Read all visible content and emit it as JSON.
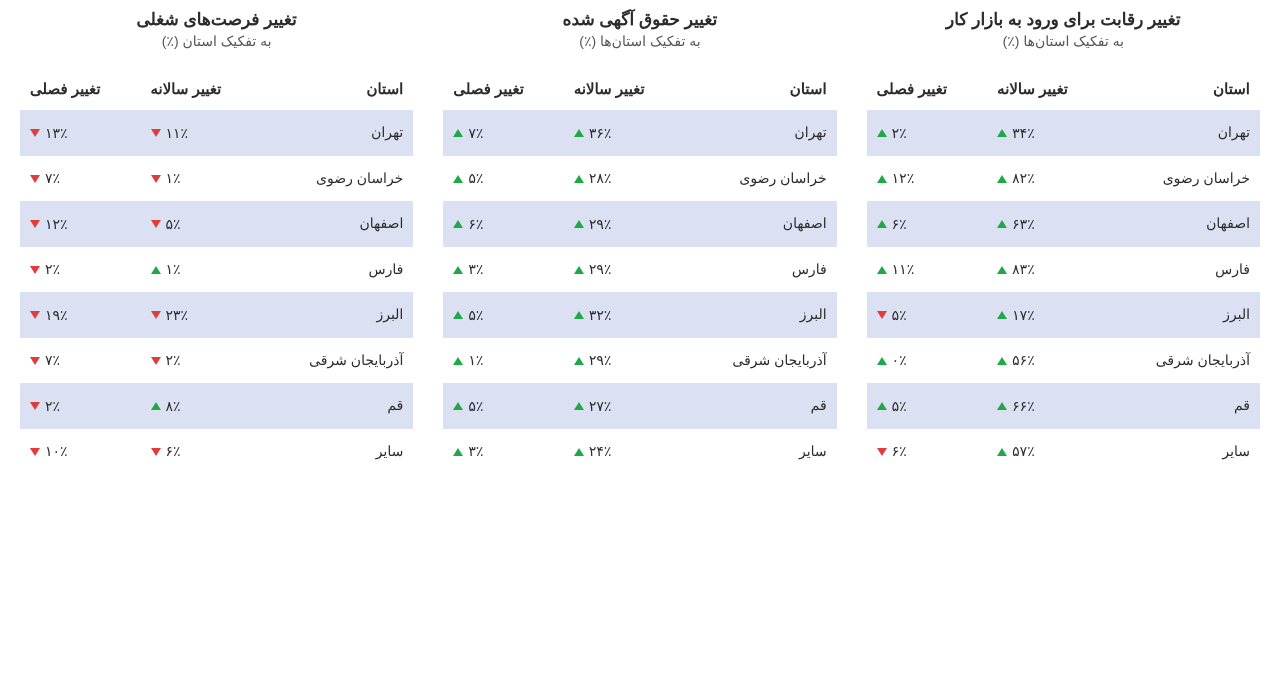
{
  "colors": {
    "up": "#1fa945",
    "down": "#e23b3b",
    "row_alt": "#dbe0f2",
    "bg": "#ffffff",
    "text": "#2b2b2b",
    "subtitle": "#555555"
  },
  "columns": {
    "province": "استان",
    "yearly": "تغییر سالانه",
    "seasonal": "تغییر فصلی"
  },
  "percent_suffix": "٪",
  "tables": [
    {
      "title": "تغییر فرصت‌های شغلی",
      "subtitle": "به تفکیک استان (٪)",
      "rows": [
        {
          "province": "تهران",
          "yearly": {
            "v": "۱۱",
            "dir": "down"
          },
          "seasonal": {
            "v": "۱۳",
            "dir": "down"
          }
        },
        {
          "province": "خراسان رضوی",
          "yearly": {
            "v": "۱",
            "dir": "down"
          },
          "seasonal": {
            "v": "۷",
            "dir": "down"
          }
        },
        {
          "province": "اصفهان",
          "yearly": {
            "v": "۵",
            "dir": "down"
          },
          "seasonal": {
            "v": "۱۲",
            "dir": "down"
          }
        },
        {
          "province": "فارس",
          "yearly": {
            "v": "۱",
            "dir": "up"
          },
          "seasonal": {
            "v": "۲",
            "dir": "down"
          }
        },
        {
          "province": "البرز",
          "yearly": {
            "v": "۲۳",
            "dir": "down"
          },
          "seasonal": {
            "v": "۱۹",
            "dir": "down"
          }
        },
        {
          "province": "آذربایجان شرقی",
          "yearly": {
            "v": "۲",
            "dir": "down"
          },
          "seasonal": {
            "v": "۷",
            "dir": "down"
          }
        },
        {
          "province": "قم",
          "yearly": {
            "v": "۸",
            "dir": "up"
          },
          "seasonal": {
            "v": "۲",
            "dir": "down"
          }
        },
        {
          "province": "سایر",
          "yearly": {
            "v": "۶",
            "dir": "down"
          },
          "seasonal": {
            "v": "۱۰",
            "dir": "down"
          }
        }
      ]
    },
    {
      "title": "تغییر حقوق آگهی شده",
      "subtitle": "به تفکیک استان‌ها (٪)",
      "rows": [
        {
          "province": "تهران",
          "yearly": {
            "v": "۳۶",
            "dir": "up"
          },
          "seasonal": {
            "v": "۷",
            "dir": "up"
          }
        },
        {
          "province": "خراسان رضوی",
          "yearly": {
            "v": "۲۸",
            "dir": "up"
          },
          "seasonal": {
            "v": "۵",
            "dir": "up"
          }
        },
        {
          "province": "اصفهان",
          "yearly": {
            "v": "۲۹",
            "dir": "up"
          },
          "seasonal": {
            "v": "۶",
            "dir": "up"
          }
        },
        {
          "province": "فارس",
          "yearly": {
            "v": "۲۹",
            "dir": "up"
          },
          "seasonal": {
            "v": "۳",
            "dir": "up"
          }
        },
        {
          "province": "البرز",
          "yearly": {
            "v": "۳۲",
            "dir": "up"
          },
          "seasonal": {
            "v": "۵",
            "dir": "up"
          }
        },
        {
          "province": "آذربایجان شرقی",
          "yearly": {
            "v": "۲۹",
            "dir": "up"
          },
          "seasonal": {
            "v": "۱",
            "dir": "up"
          }
        },
        {
          "province": "قم",
          "yearly": {
            "v": "۲۷",
            "dir": "up"
          },
          "seasonal": {
            "v": "۵",
            "dir": "up"
          }
        },
        {
          "province": "سایر",
          "yearly": {
            "v": "۲۴",
            "dir": "up"
          },
          "seasonal": {
            "v": "۳",
            "dir": "up"
          }
        }
      ]
    },
    {
      "title": "تغییر رقابت برای ورود به بازار کار",
      "subtitle": "به تفکیک استان‌ها (٪)",
      "rows": [
        {
          "province": "تهران",
          "yearly": {
            "v": "۳۴",
            "dir": "up"
          },
          "seasonal": {
            "v": "۲",
            "dir": "up"
          }
        },
        {
          "province": "خراسان رضوی",
          "yearly": {
            "v": "۸۲",
            "dir": "up"
          },
          "seasonal": {
            "v": "۱۲",
            "dir": "up"
          }
        },
        {
          "province": "اصفهان",
          "yearly": {
            "v": "۶۳",
            "dir": "up"
          },
          "seasonal": {
            "v": "۶",
            "dir": "up"
          }
        },
        {
          "province": "فارس",
          "yearly": {
            "v": "۸۳",
            "dir": "up"
          },
          "seasonal": {
            "v": "۱۱",
            "dir": "up"
          }
        },
        {
          "province": "البرز",
          "yearly": {
            "v": "۱۷",
            "dir": "up"
          },
          "seasonal": {
            "v": "۵",
            "dir": "down"
          }
        },
        {
          "province": "آذربایجان شرقی",
          "yearly": {
            "v": "۵۶",
            "dir": "up"
          },
          "seasonal": {
            "v": "۰",
            "dir": "up"
          }
        },
        {
          "province": "قم",
          "yearly": {
            "v": "۶۶",
            "dir": "up"
          },
          "seasonal": {
            "v": "۵",
            "dir": "up"
          }
        },
        {
          "province": "سایر",
          "yearly": {
            "v": "۵۷",
            "dir": "up"
          },
          "seasonal": {
            "v": "۶",
            "dir": "down"
          }
        }
      ]
    }
  ]
}
